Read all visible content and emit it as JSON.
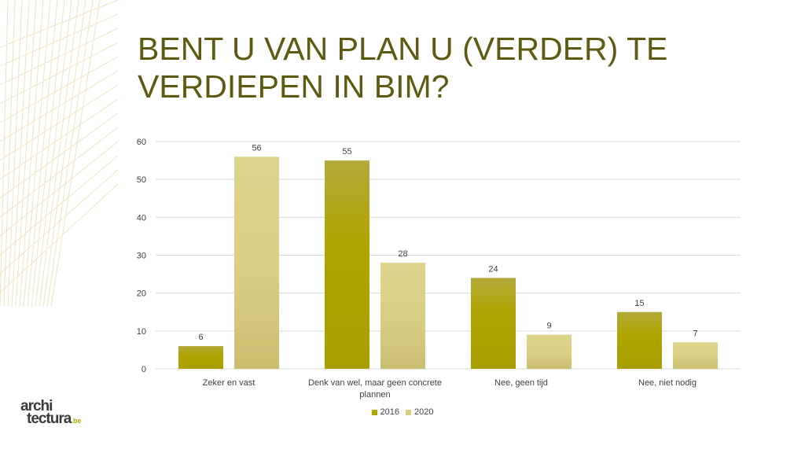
{
  "slide": {
    "title": "BENT U VAN PLAN U (VERDER) TE VERDIEPEN IN BIM?"
  },
  "logo": {
    "line1_a": "archi",
    "line1_b": "",
    "line2": "tectura",
    "suffix": ".be"
  },
  "colors": {
    "series_2016": "#b0a500",
    "series_2020": "#d9cf82",
    "gridline": "#d9d9d9",
    "title": "#5e5a12",
    "deco": "#efe6bf"
  },
  "chart_data": {
    "type": "bar",
    "categories": [
      [
        "Zeker en vast"
      ],
      [
        "Denk van wel, maar geen concrete",
        "plannen"
      ],
      [
        "Nee, geen tijd"
      ],
      [
        "Nee, niet nodig"
      ]
    ],
    "series": [
      {
        "name": "2016",
        "values": [
          6,
          55,
          24,
          15
        ]
      },
      {
        "name": "2020",
        "values": [
          56,
          28,
          9,
          7
        ]
      }
    ],
    "y_ticks": [
      0,
      10,
      20,
      30,
      40,
      50,
      60
    ],
    "ylim": [
      0,
      60
    ],
    "grid": true,
    "legend_position": "bottom",
    "data_labels": true
  }
}
